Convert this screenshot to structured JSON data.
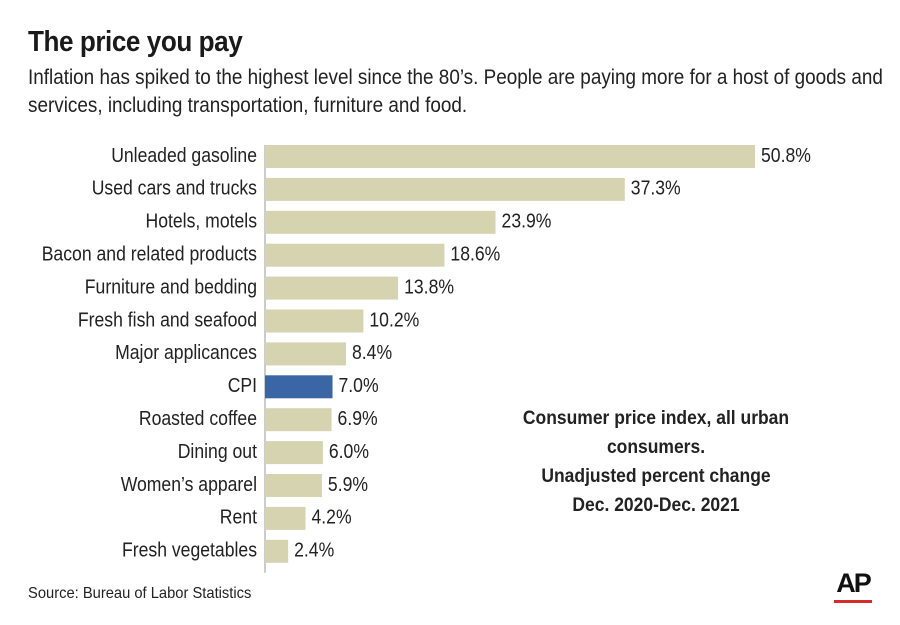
{
  "header": {
    "title": "The price you pay",
    "subtitle": "Inflation has spiked to the highest level since the 80’s. People are paying more for a host of goods and services, including transportation, furniture and food."
  },
  "note": {
    "line1": "Consumer price index, all urban consumers.",
    "line2": "Unadjusted percent change",
    "line3": "Dec. 2020-Dec. 2021"
  },
  "footer": {
    "source": "Source: Bureau of Labor Statistics",
    "logo": "AP"
  },
  "colors": {
    "bar": "#d6d3b0",
    "highlight_bar": "#3b66a6",
    "logo_rule": "#d62b2b"
  },
  "chart_data": {
    "type": "bar",
    "orientation": "horizontal",
    "categories": [
      "Unleaded gasoline",
      "Used cars and trucks",
      "Hotels, motels",
      "Bacon and related products",
      "Furniture and bedding",
      "Fresh fish and seafood",
      "Major applicances",
      "CPI",
      "Roasted coffee",
      "Dining out",
      "Women’s apparel",
      "Rent",
      "Fresh vegetables"
    ],
    "values": [
      50.8,
      37.3,
      23.9,
      18.6,
      13.8,
      10.2,
      8.4,
      7.0,
      6.9,
      6.0,
      5.9,
      4.2,
      2.4
    ],
    "value_labels": [
      "50.8%",
      "37.3%",
      "23.9%",
      "18.6%",
      "13.8%",
      "10.2%",
      "8.4%",
      "7.0%",
      "6.9%",
      "6.0%",
      "5.9%",
      "4.2%",
      "2.4%"
    ],
    "highlight": "CPI",
    "xlim": [
      0,
      50.8
    ],
    "grid": false,
    "legend": "none"
  }
}
